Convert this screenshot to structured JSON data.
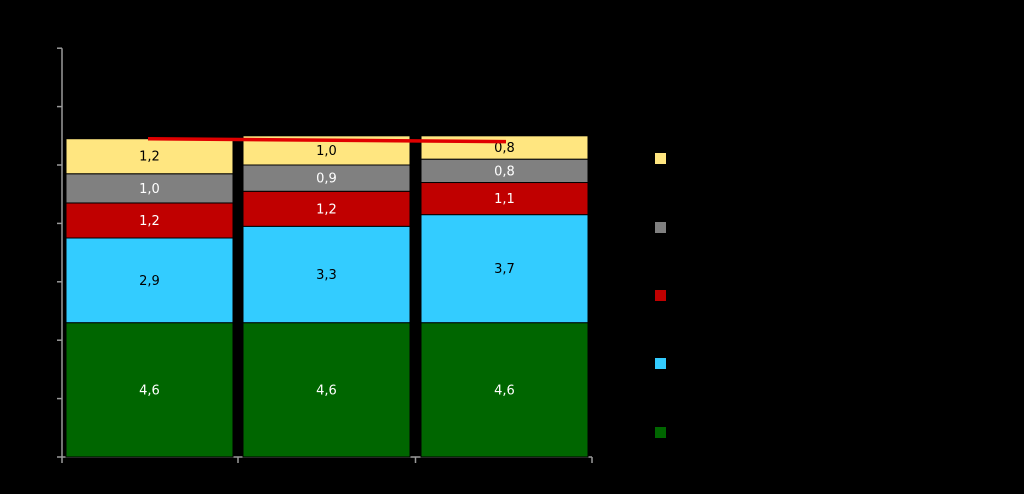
{
  "chart_data": {
    "type": "bar",
    "stacked": true,
    "title": "",
    "xlabel": "",
    "ylabel": "",
    "categories": [
      "",
      "",
      ""
    ],
    "ylim": [
      0,
      14
    ],
    "y_ticks": [
      0,
      2,
      4,
      6,
      8,
      10,
      12,
      14
    ],
    "grid": false,
    "legend_position": "right",
    "series": [
      {
        "key": "s1",
        "color": "#006600",
        "values": [
          4.6,
          4.6,
          4.6
        ],
        "labels": [
          "4,6",
          "4,6",
          "4,6"
        ],
        "label_color": "#ffffff"
      },
      {
        "key": "s2",
        "color": "#33ccff",
        "values": [
          2.9,
          3.3,
          3.7
        ],
        "labels": [
          "2,9",
          "3,3",
          "3,7"
        ],
        "label_color": "#000000"
      },
      {
        "key": "s3",
        "color": "#c00000",
        "values": [
          1.2,
          1.2,
          1.1
        ],
        "labels": [
          "1,2",
          "1,2",
          "1,1"
        ],
        "label_color": "#ffffff"
      },
      {
        "key": "s4",
        "color": "#808080",
        "values": [
          1.0,
          0.9,
          0.8
        ],
        "labels": [
          "1,0",
          "0,9",
          "0,8"
        ],
        "label_color": "#ffffff"
      },
      {
        "key": "s5",
        "color": "#ffe680",
        "values": [
          1.2,
          1.0,
          0.8
        ],
        "labels": [
          "1,2",
          "1,0",
          "0,8"
        ],
        "label_color": "#000000"
      }
    ],
    "trend_line": {
      "color": "#e00000",
      "from_category": 0,
      "to_category": 2,
      "values": [
        10.9,
        10.8
      ]
    },
    "legend_order": [
      "s5",
      "s4",
      "s3",
      "s2",
      "s1"
    ]
  }
}
